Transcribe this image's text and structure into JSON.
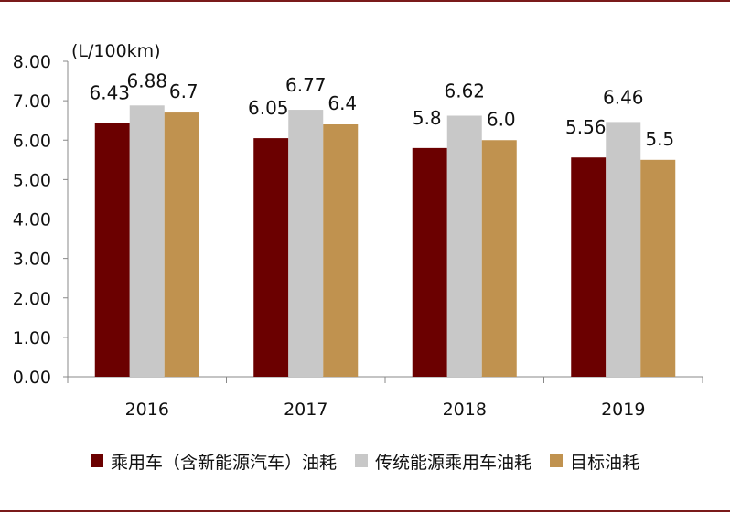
{
  "chart_data": {
    "type": "bar",
    "unit_label": "(L/100km)",
    "categories": [
      "2016",
      "2017",
      "2018",
      "2019"
    ],
    "series": [
      {
        "name": "乘用车（含新能源汽车）油耗",
        "color": "#6b0000",
        "values": [
          6.43,
          6.05,
          5.8,
          5.56
        ],
        "labels": [
          "6.43",
          "6.05",
          "5.8",
          "5.56"
        ]
      },
      {
        "name": "传统能源乘用车油耗",
        "color": "#c8c8c8",
        "values": [
          6.88,
          6.77,
          6.62,
          6.46
        ],
        "labels": [
          "6.88",
          "6.77",
          "6.62",
          "6.46"
        ]
      },
      {
        "name": "目标油耗",
        "color": "#c0924f",
        "values": [
          6.7,
          6.4,
          6.0,
          5.5
        ],
        "labels": [
          "6.7",
          "6.4",
          "6.0",
          "5.5"
        ]
      }
    ],
    "ylim": [
      0,
      8
    ],
    "y_ticks": [
      "0.00",
      "1.00",
      "2.00",
      "3.00",
      "4.00",
      "5.00",
      "6.00",
      "7.00",
      "8.00"
    ],
    "grid": false,
    "legend_position": "bottom"
  }
}
